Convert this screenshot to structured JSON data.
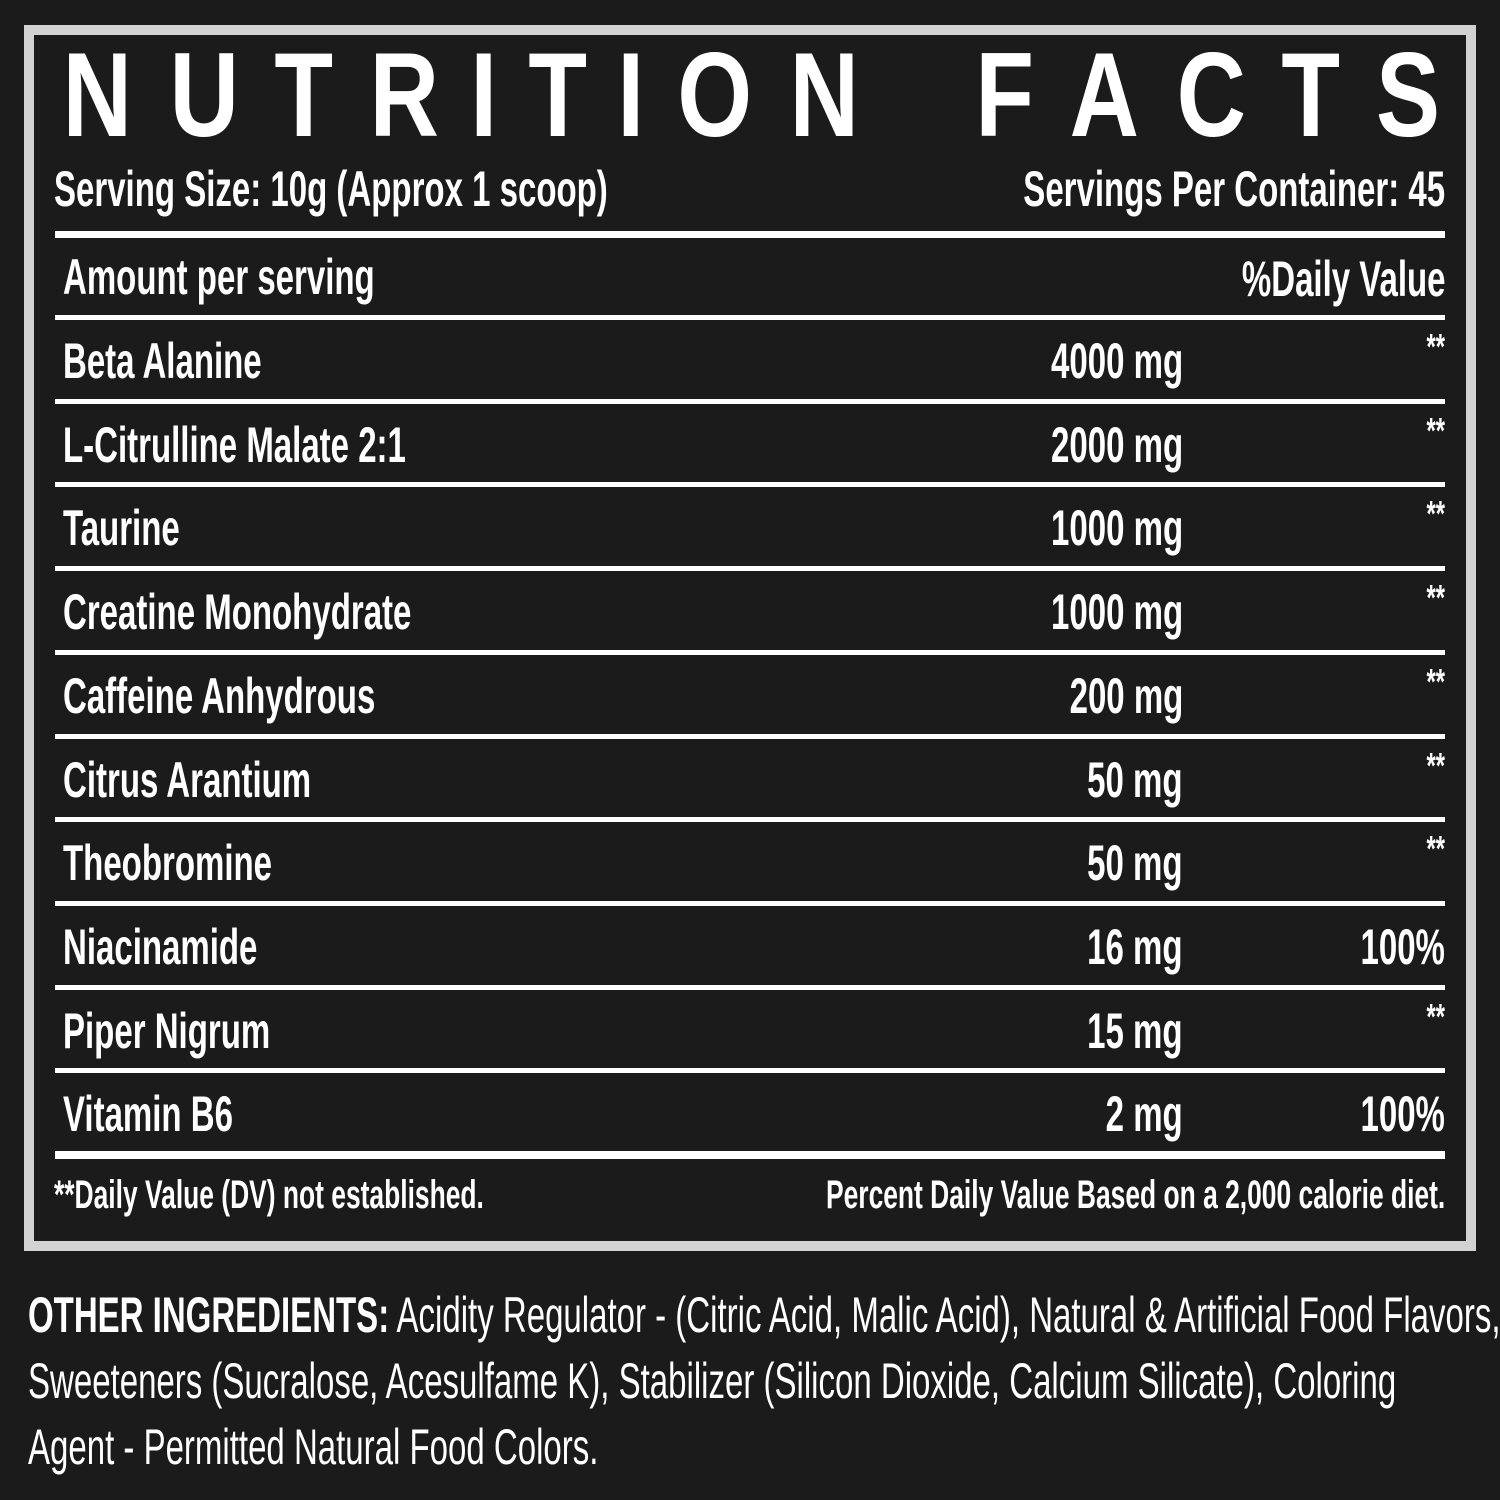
{
  "title_letters": [
    "N",
    "U",
    "T",
    "R",
    "I",
    "T",
    "I",
    "O",
    "N",
    "F",
    "A",
    "C",
    "T",
    "S"
  ],
  "title": "NUTRITION FACTS",
  "serving_size": "Serving Size:  10g  (Approx 1 scoop)",
  "servings_per_container": "Servings Per Container: 45",
  "header": {
    "amount_label": "Amount per serving",
    "dv_label": "%Daily Value"
  },
  "rows": [
    {
      "name": "Beta Alanine",
      "amount": "4000 mg",
      "dv": "**"
    },
    {
      "name": "L-Citrulline Malate 2:1",
      "amount": "2000 mg",
      "dv": "**"
    },
    {
      "name": "Taurine",
      "amount": "1000 mg",
      "dv": "**"
    },
    {
      "name": "Creatine Monohydrate",
      "amount": "1000 mg",
      "dv": "**"
    },
    {
      "name": "Caffeine Anhydrous",
      "amount": "200 mg",
      "dv": "**"
    },
    {
      "name": "Citrus Arantium",
      "amount": "50 mg",
      "dv": "**"
    },
    {
      "name": "Theobromine",
      "amount": "50 mg",
      "dv": "**"
    },
    {
      "name": "Niacinamide",
      "amount": "16 mg",
      "dv": "100%"
    },
    {
      "name": "Piper Nigrum",
      "amount": "15 mg",
      "dv": "**"
    },
    {
      "name": "Vitamin B6",
      "amount": "2 mg",
      "dv": "100%"
    }
  ],
  "footnote_left": "**Daily Value (DV) not established.",
  "footnote_right": "Percent Daily Value Based on a 2,000 calorie diet.",
  "other_ingredients": {
    "label": "OTHER INGREDIENTS:",
    "line1": " Acidity Regulator - (Citric Acid, Malic Acid), Natural & Artificial Food Flavors,",
    "line2": "Sweeteners  (Sucralose,  Acesulfame  K),  Stabilizer  (Silicon  Dioxide,  Calcium  Silicate),  Coloring",
    "line3": "Agent - Permitted Natural Food Colors."
  },
  "colors": {
    "background": "#1b1b1b",
    "border": "#d2d2d2",
    "text": "#ffffff"
  }
}
